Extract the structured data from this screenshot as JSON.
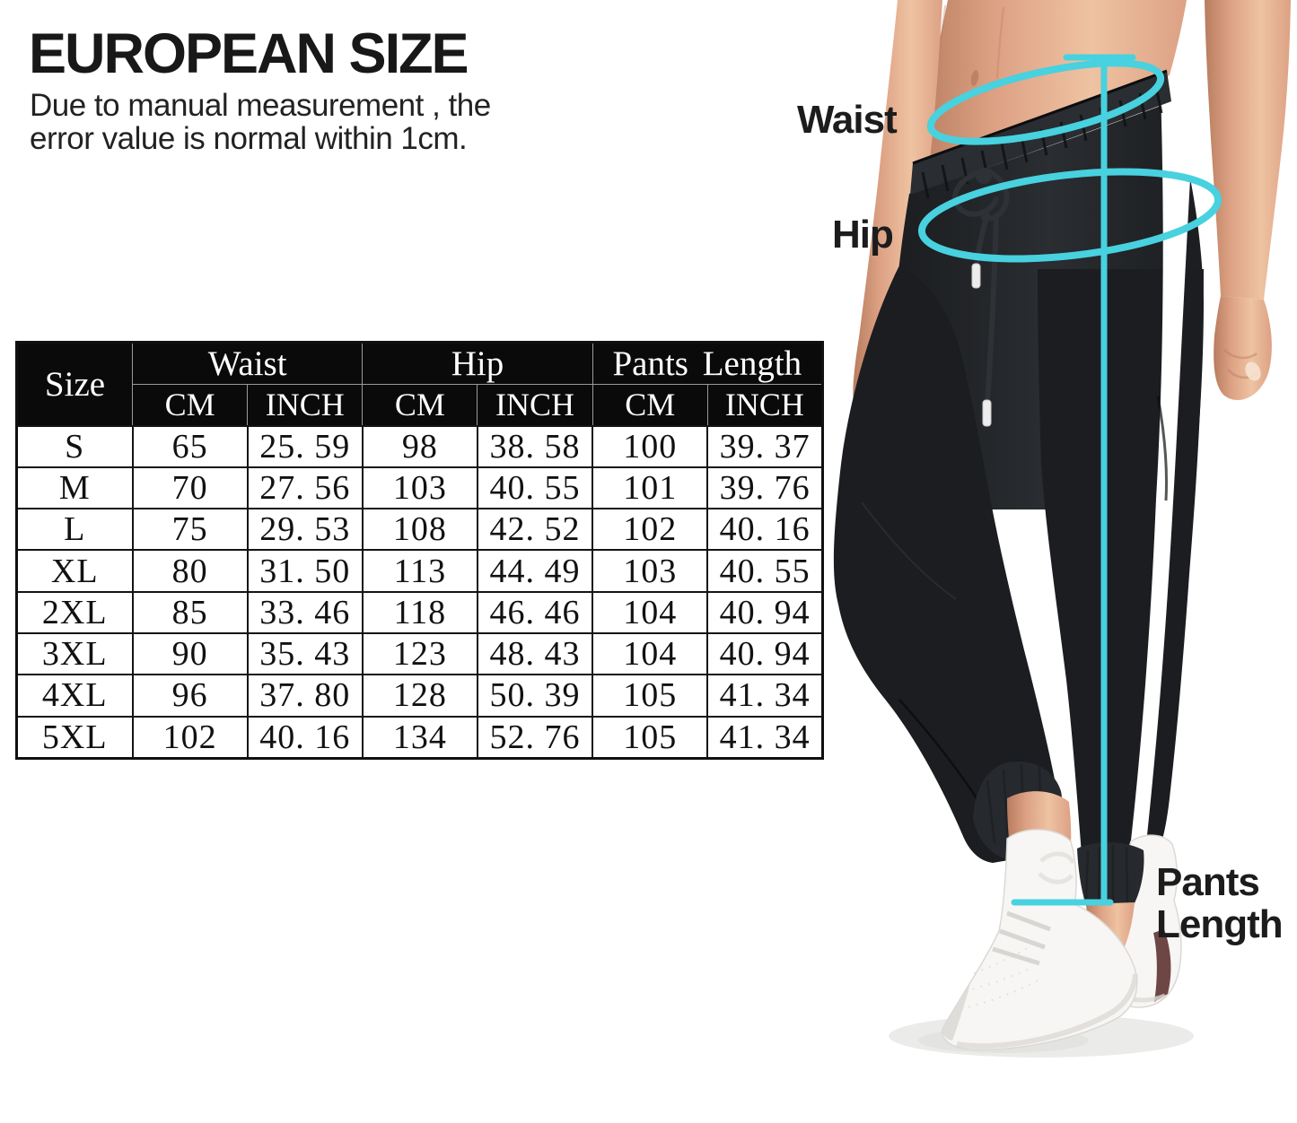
{
  "header": {
    "title": "EUROPEAN SIZE",
    "subtitle_line1": "Due to manual measurement , the",
    "subtitle_line2": "error value is normal within 1cm."
  },
  "size_chart": {
    "header": {
      "size": "Size",
      "waist": "Waist",
      "hip": "Hip",
      "pants_length": "Pants Length",
      "cm": "CM",
      "inch": "INCH"
    },
    "rows": [
      {
        "size": "S",
        "cells": [
          "65",
          "25. 59",
          "98",
          "38. 58",
          "100",
          "39. 37"
        ]
      },
      {
        "size": "M",
        "cells": [
          "70",
          "27. 56",
          "103",
          "40. 55",
          "101",
          "39. 76"
        ]
      },
      {
        "size": "L",
        "cells": [
          "75",
          "29. 53",
          "108",
          "42. 52",
          "102",
          "40. 16"
        ]
      },
      {
        "size": "XL",
        "cells": [
          "80",
          "31. 50",
          "113",
          "44. 49",
          "103",
          "40. 55"
        ]
      },
      {
        "size": "2XL",
        "cells": [
          "85",
          "33. 46",
          "118",
          "46. 46",
          "104",
          "40. 94"
        ]
      },
      {
        "size": "3XL",
        "cells": [
          "90",
          "35. 43",
          "123",
          "48. 43",
          "104",
          "40. 94"
        ]
      },
      {
        "size": "4XL",
        "cells": [
          "96",
          "37. 80",
          "128",
          "50. 39",
          "105",
          "41. 34"
        ]
      },
      {
        "size": "5XL",
        "cells": [
          "102",
          "40. 16",
          "134",
          "52. 76",
          "105",
          "41. 34"
        ]
      }
    ]
  },
  "figure": {
    "labels": {
      "waist": "Waist",
      "hip": "Hip",
      "pants_length_line1": "Pants",
      "pants_length_line2": "Length"
    },
    "colors": {
      "annotation": "#48d1df",
      "pants": "#1b1d20",
      "pants_shade": "#2a2d31",
      "cuff": "#26292d",
      "stripe": "#ffffff",
      "skin": "#dda184",
      "skin_light": "#eec3a2",
      "skin_shadow": "#b87c5f",
      "shoe": "#f7f6f4",
      "shoe_shade": "#dcdad6",
      "shoe_accent": "#6e4744",
      "shadow": "#ebebe9",
      "drawstring": "#2e3135",
      "aglet": "#ededed"
    }
  }
}
